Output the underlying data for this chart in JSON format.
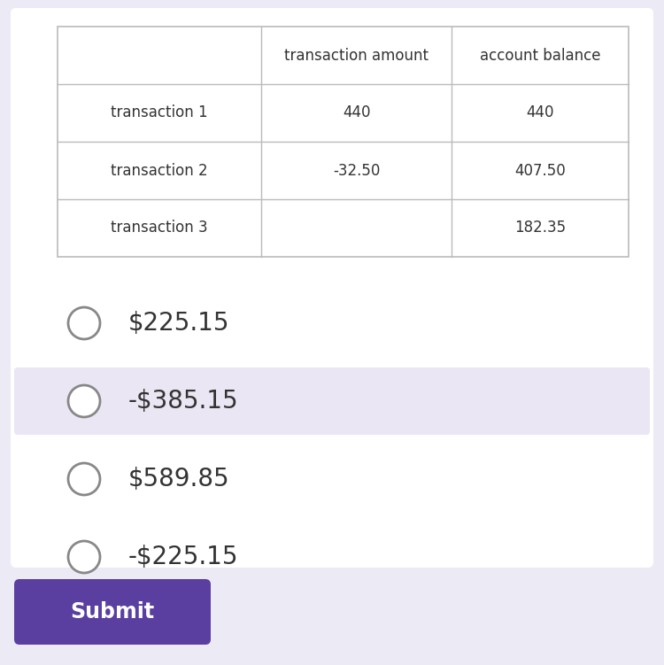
{
  "background_color": "#eceaf4",
  "card_color": "#ffffff",
  "table_header_row": [
    "",
    "transaction amount",
    "account balance"
  ],
  "table_rows": [
    [
      "transaction 1",
      "440",
      "440"
    ],
    [
      "transaction 2",
      "-32.50",
      "407.50"
    ],
    [
      "transaction 3",
      "",
      "182.35"
    ]
  ],
  "options": [
    "$225.15",
    "-$385.15",
    "$589.85",
    "-$225.15"
  ],
  "option_highlighted": 1,
  "option_highlighted_bg": "#eae6f4",
  "submit_label": "Submit",
  "submit_bg": "#5b3fa0",
  "submit_text_color": "#ffffff",
  "text_color": "#333333",
  "table_border_color": "#bbbbbb",
  "radio_border_color": "#888888",
  "radio_fill_color": "#ffffff",
  "option_text_fontsize": 20,
  "table_fontsize": 12
}
